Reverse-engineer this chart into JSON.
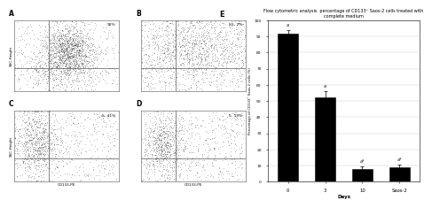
{
  "title_E": "Flow cytometric analysis  percentage of CD133⁺ Saos-2 cells treated with\ncomplete medium",
  "xlabel_E": "Days",
  "ylabel_E": "Percentage of CD133⁺ Saos-2 cells (%)",
  "categories": [
    "0",
    "3",
    "10",
    "Saos-2"
  ],
  "values": [
    92,
    52,
    8,
    9
  ],
  "error_bars": [
    2,
    4,
    1.5,
    1.5
  ],
  "bar_color": "#000000",
  "ylim": [
    0,
    100
  ],
  "yticks": [
    0,
    10,
    20,
    30,
    40,
    50,
    60,
    70,
    80,
    90,
    100
  ],
  "scatter_labels": [
    "A",
    "B",
    "C",
    "D"
  ],
  "scatter_percentages": [
    "92%",
    "55. 2%",
    "5. 41%",
    "5. 19%"
  ],
  "scatter_xlabel": "CD133-PE",
  "scatter_ylabel": "SSC-Height",
  "bg_color": "#ffffff",
  "grid_color": "#d0d0d0",
  "annotation_0": "a",
  "annotation_3": "a",
  "annotation_10": "a*",
  "annotation_saos": "a*"
}
